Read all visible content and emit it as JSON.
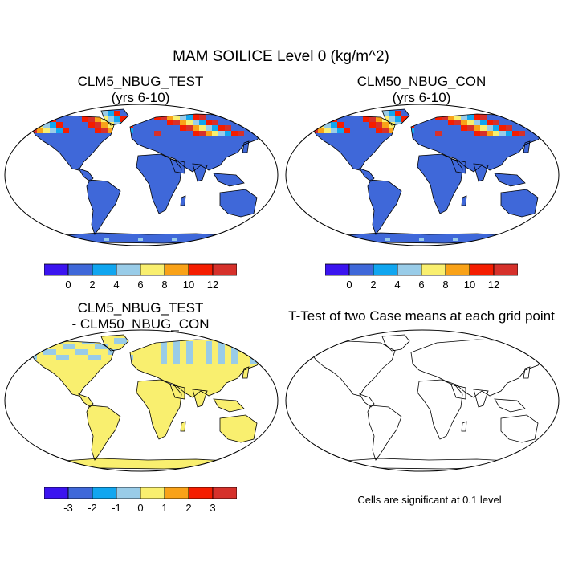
{
  "figure": {
    "title": "MAM SOILICE Level 0 (kg/m^2)"
  },
  "panels": {
    "p1": {
      "title_line1": "CLM5_NBUG_TEST",
      "title_line2": "(yrs 6-10)"
    },
    "p2": {
      "title_line1": "CLM50_NBUG_CON",
      "title_line2": "(yrs 6-10)"
    },
    "p3": {
      "title_line1": "CLM5_NBUG_TEST",
      "title_line2": "- CLM50_NBUG_CON"
    },
    "p4": {
      "title_line1": "T-Test of two Case means at each grid point",
      "note": "Cells are significant at 0.1 level"
    }
  },
  "colorbars": {
    "abs": {
      "colors": [
        "#3b14f0",
        "#3f68d9",
        "#11a6f0",
        "#99cce8",
        "#f9ef6f",
        "#f9a218",
        "#f51d00",
        "#d6312b"
      ],
      "labels": [
        "0",
        "2",
        "4",
        "6",
        "8",
        "10",
        "12"
      ]
    },
    "diff": {
      "colors": [
        "#3b14f0",
        "#3f68d9",
        "#11a6f0",
        "#99cce8",
        "#f9ef6f",
        "#f9a218",
        "#f51d00",
        "#d6312b"
      ],
      "labels": [
        "-3",
        "-2",
        "-1",
        "0",
        "1",
        "2",
        "3"
      ]
    }
  },
  "map_colors": {
    "ocean": "#ffffff",
    "land_abs": "#3f68d9",
    "land_diff": "#f9ef6f",
    "light_blue": "#99cce8",
    "yellow": "#f9ef6f",
    "orange": "#f9a218",
    "red": "#f51d00",
    "dark_red": "#d6312b",
    "mid_blue": "#11a6f0",
    "coast": "#000000"
  }
}
